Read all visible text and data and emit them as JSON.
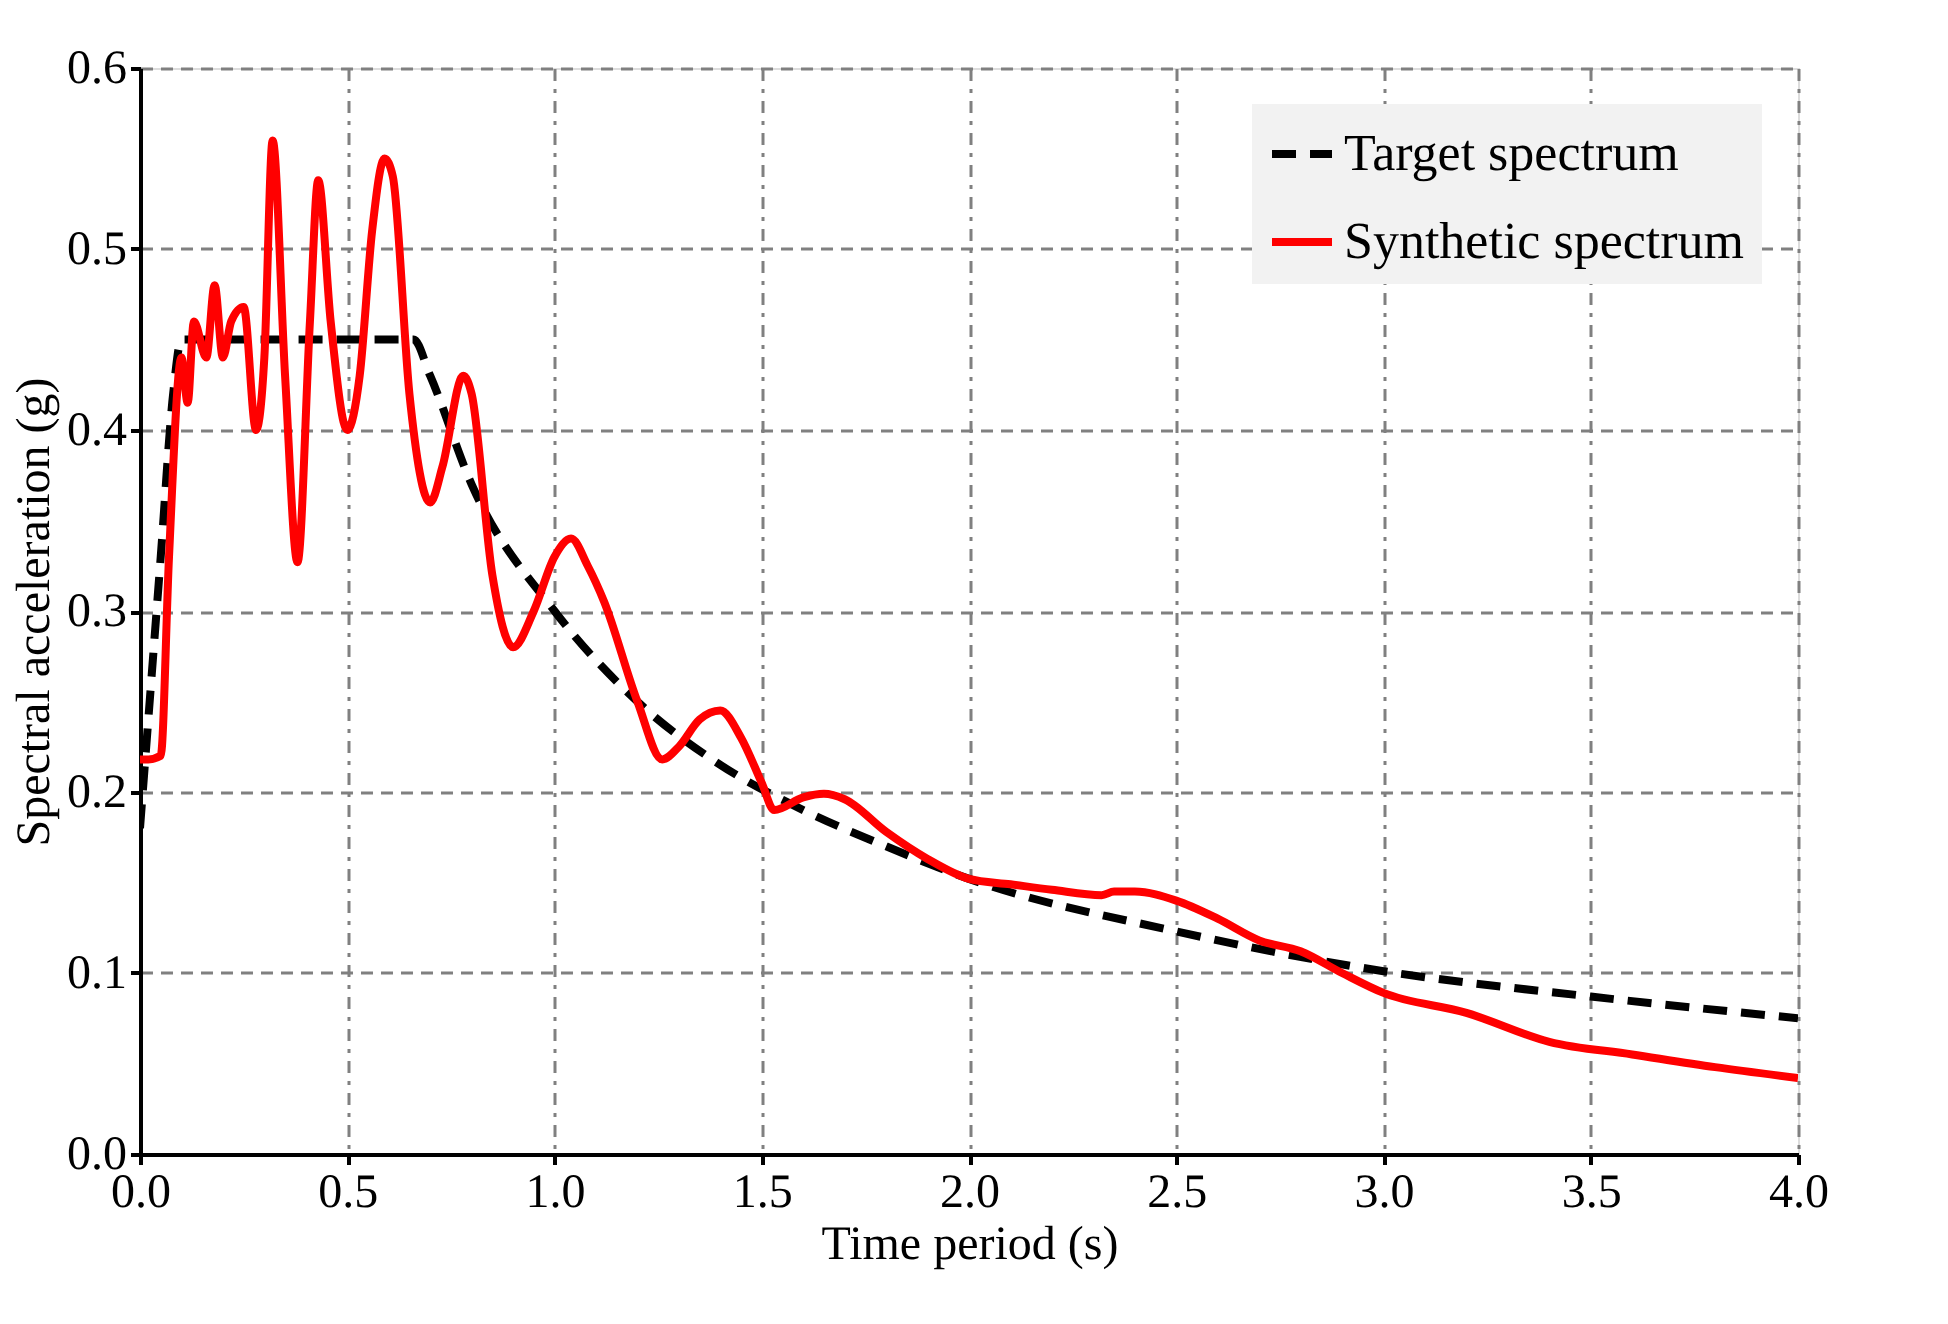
{
  "chart_data": {
    "type": "line",
    "xlabel": "Time period (s)",
    "ylabel": "Spectral acceleration (g)",
    "xlim": [
      0,
      4
    ],
    "xticks": [
      {
        "value": 0,
        "label": "0.0"
      },
      {
        "value": 0.5,
        "label": "0.5"
      },
      {
        "value": 1,
        "label": "1.0"
      },
      {
        "value": 1.5,
        "label": "1.5"
      },
      {
        "value": 2,
        "label": "2.0"
      },
      {
        "value": 2.5,
        "label": "2.5"
      },
      {
        "value": 3,
        "label": "3.0"
      },
      {
        "value": 3.5,
        "label": "3.5"
      },
      {
        "value": 4,
        "label": "4.0"
      }
    ],
    "ylim": [
      0,
      0.6
    ],
    "yticks": [
      {
        "value": 0,
        "label": "0.0"
      },
      0.1,
      0.2,
      0.3,
      0.4,
      0.5,
      0.6
    ],
    "grid": true,
    "legend": "top right",
    "marker": "none",
    "series": [
      {
        "name": "Target spectrum",
        "color": "#000000",
        "line_style": "dashed",
        "x": [
          0,
          0.02,
          0.05,
          0.08,
          0.1,
          0.66,
          0.7,
          0.8,
          1.0,
          1.2,
          1.4,
          1.6,
          1.8,
          2.0,
          2.5,
          3.0,
          3.5,
          4.0
        ],
        "values": [
          0.18,
          0.24,
          0.33,
          0.42,
          0.45,
          0.45,
          0.43,
          0.37,
          0.3,
          0.25,
          0.215,
          0.19,
          0.17,
          0.152,
          0.123,
          0.101,
          0.087,
          0.075
        ]
      },
      {
        "name": "Synthetic spectrum",
        "color": "#ff0000",
        "line_style": "solid",
        "x": [
          0,
          0.02,
          0.05,
          0.07,
          0.1,
          0.115,
          0.13,
          0.16,
          0.18,
          0.2,
          0.22,
          0.25,
          0.28,
          0.3,
          0.32,
          0.35,
          0.38,
          0.41,
          0.43,
          0.46,
          0.5,
          0.53,
          0.56,
          0.59,
          0.61,
          0.65,
          0.7,
          0.73,
          0.78,
          0.8,
          0.85,
          0.9,
          0.95,
          1.0,
          1.04,
          1.08,
          1.12,
          1.2,
          1.26,
          1.3,
          1.35,
          1.4,
          1.45,
          1.5,
          1.53,
          1.6,
          1.65,
          1.7,
          1.8,
          1.9,
          2.0,
          2.1,
          2.2,
          2.32,
          2.35,
          2.4,
          2.5,
          2.6,
          2.7,
          2.8,
          2.9,
          3.0,
          3.2,
          3.4,
          3.6,
          3.8,
          4.0
        ],
        "values": [
          0.218,
          0.218,
          0.22,
          0.33,
          0.44,
          0.415,
          0.46,
          0.44,
          0.48,
          0.44,
          0.46,
          0.468,
          0.4,
          0.44,
          0.56,
          0.43,
          0.327,
          0.46,
          0.538,
          0.46,
          0.4,
          0.43,
          0.51,
          0.55,
          0.54,
          0.42,
          0.36,
          0.38,
          0.43,
          0.42,
          0.32,
          0.28,
          0.3,
          0.33,
          0.34,
          0.325,
          0.305,
          0.25,
          0.218,
          0.225,
          0.24,
          0.245,
          0.23,
          0.205,
          0.19,
          0.197,
          0.199,
          0.196,
          0.178,
          0.163,
          0.152,
          0.149,
          0.146,
          0.143,
          0.145,
          0.145,
          0.14,
          0.13,
          0.118,
          0.112,
          0.1,
          0.089,
          0.078,
          0.062,
          0.055,
          0.048,
          0.042
        ]
      }
    ]
  }
}
